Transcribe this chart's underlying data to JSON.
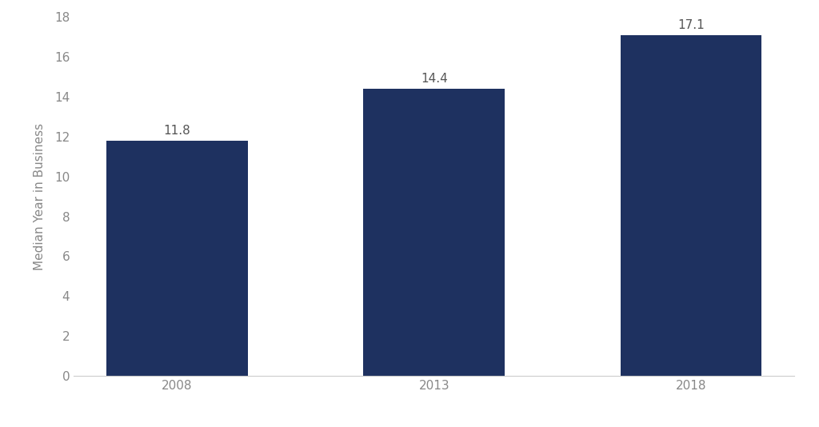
{
  "categories": [
    "2008",
    "2013",
    "2018"
  ],
  "values": [
    11.8,
    14.4,
    17.1
  ],
  "bar_color": "#1e3160",
  "ylabel": "Median Year in Business",
  "ylim": [
    0,
    18
  ],
  "yticks": [
    0,
    2,
    4,
    6,
    8,
    10,
    12,
    14,
    16,
    18
  ],
  "bar_width": 0.55,
  "label_fontsize": 11,
  "tick_fontsize": 11,
  "ylabel_fontsize": 11,
  "background_color": "#ffffff",
  "annotation_color": "#555555"
}
